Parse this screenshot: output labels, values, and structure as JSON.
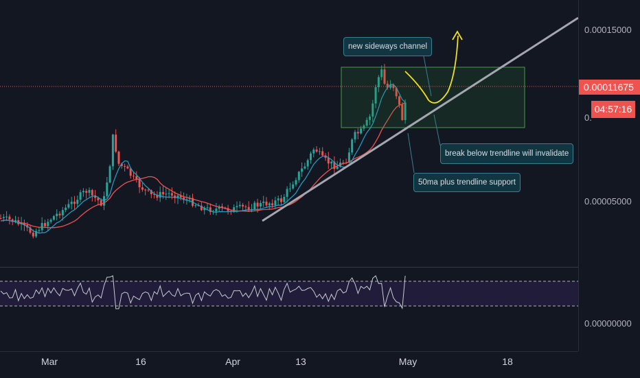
{
  "price_axis": {
    "labels": [
      "0.00015000",
      "0.00005000",
      "0.00000000"
    ],
    "current_price": "0.00011675",
    "countdown": "04:57:16",
    "partial_label": "0."
  },
  "time_axis": {
    "labels": [
      "Mar",
      "16",
      "Apr",
      "13",
      "May",
      "18"
    ]
  },
  "annotations": {
    "channel": "new sideways channel",
    "invalidate": "break below trendline will invalidate",
    "support": "50ma plus trendline support"
  },
  "colors": {
    "background": "#131722",
    "up_candle": "#26a69a",
    "down_candle": "#ef5350",
    "ma_fast": "#2196f3",
    "ma_slow": "#ef5350",
    "trendline": "#9598a1",
    "projection": "#f5e11e",
    "channel_box": "#2e7d32",
    "rsi_band": "#2a1f4a",
    "callout_border": "#3a7f8f"
  },
  "icons": {
    "projection_arrow": "arrow-head-up-icon"
  }
}
